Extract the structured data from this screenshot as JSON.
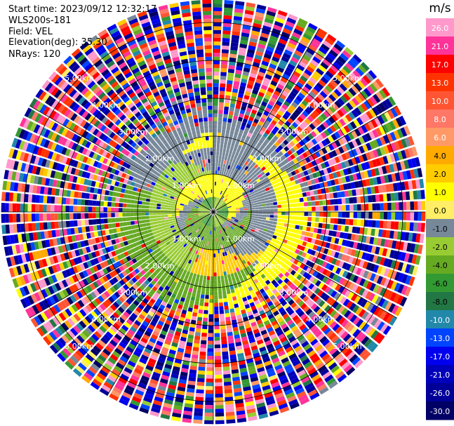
{
  "header": {
    "start_time": "Start time: 2023/09/12 12:32:17",
    "instrument": "WLS200s-181",
    "field": "Field: VEL",
    "elevation": "Elevation(deg): 35.30",
    "nrays": "NRays: 120"
  },
  "chart_data": {
    "type": "ppi",
    "title": "Radial velocity PPI scan",
    "field": "VEL",
    "units": "m/s",
    "n_rays": 120,
    "elevation_deg": 35.3,
    "range_rings_km": [
      1.0,
      2.0,
      3.0,
      4.0,
      5.0
    ],
    "ring_labels": [
      "1.00km",
      "2.00km",
      "3.00km",
      "4.00km",
      "5.00km"
    ],
    "colorbar": {
      "title": "m/s",
      "tick_labels": [
        "26.0",
        "21.0",
        "17.0",
        "13.0",
        "10.0",
        "8.0",
        "6.0",
        "4.0",
        "2.0",
        "1.0",
        "0.0",
        "-1.0",
        "-2.0",
        "-4.0",
        "-6.0",
        "-8.0",
        "-10.0",
        "-13.0",
        "-17.0",
        "-21.0",
        "-26.0",
        "-30.0"
      ],
      "bins": [
        {
          "min": 26.0,
          "max": 30.0,
          "color": "#ff99cc"
        },
        {
          "min": 21.0,
          "max": 26.0,
          "color": "#ff3399"
        },
        {
          "min": 17.0,
          "max": 21.0,
          "color": "#ff0000"
        },
        {
          "min": 13.0,
          "max": 17.0,
          "color": "#ff3300"
        },
        {
          "min": 10.0,
          "max": 13.0,
          "color": "#ff5533"
        },
        {
          "min": 8.0,
          "max": 10.0,
          "color": "#ff7766"
        },
        {
          "min": 6.0,
          "max": 8.0,
          "color": "#ff9966"
        },
        {
          "min": 4.0,
          "max": 6.0,
          "color": "#ffaa00"
        },
        {
          "min": 2.0,
          "max": 4.0,
          "color": "#ffcc00"
        },
        {
          "min": 1.0,
          "max": 2.0,
          "color": "#ffff00"
        },
        {
          "min": 0.0,
          "max": 1.0,
          "color": "#ffee66"
        },
        {
          "min": -1.0,
          "max": 0.0,
          "color": "#778899"
        },
        {
          "min": -2.0,
          "max": -1.0,
          "color": "#99cc33"
        },
        {
          "min": -4.0,
          "max": -2.0,
          "color": "#66aa22"
        },
        {
          "min": -6.0,
          "max": -4.0,
          "color": "#339933"
        },
        {
          "min": -8.0,
          "max": -6.0,
          "color": "#227744"
        },
        {
          "min": -10.0,
          "max": -8.0,
          "color": "#2288aa"
        },
        {
          "min": -13.0,
          "max": -10.0,
          "color": "#0044ff"
        },
        {
          "min": -17.0,
          "max": -13.0,
          "color": "#0000ee"
        },
        {
          "min": -21.0,
          "max": -17.0,
          "color": "#0000bb"
        },
        {
          "min": -26.0,
          "max": -21.0,
          "color": "#000099"
        },
        {
          "min": -30.0,
          "max": -26.0,
          "color": "#000066"
        }
      ]
    },
    "pattern": {
      "inner_radius_km": 0.0,
      "clean_radius_km": 2.6,
      "noise_start_km": 2.4,
      "max_range_km": 5.6,
      "gate_km": 0.1
    }
  }
}
